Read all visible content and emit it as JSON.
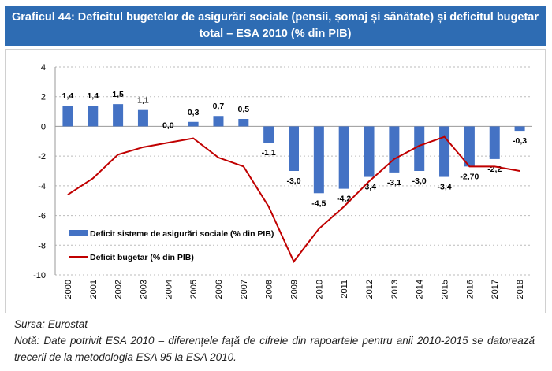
{
  "chart_data": {
    "type": "bar",
    "title": "Graficul 44: Deficitul bugetelor de asigurări sociale (pensii, șomaj și sănătate) și deficitul bugetar total – ESA 2010 (% din PIB)",
    "categories": [
      "2000",
      "2001",
      "2002",
      "2003",
      "2004",
      "2005",
      "2006",
      "2007",
      "2008",
      "2009",
      "2010",
      "2011",
      "2012",
      "2013",
      "2014",
      "2015",
      "2016",
      "2017",
      "2018"
    ],
    "series": [
      {
        "name": "Deficit sisteme de asigurări sociale (% din PIB)",
        "type": "bar",
        "color": "#4472c4",
        "values": [
          1.4,
          1.4,
          1.5,
          1.1,
          0.0,
          0.3,
          0.7,
          0.5,
          -1.1,
          -3.0,
          -4.5,
          -4.2,
          -3.4,
          -3.1,
          -3.0,
          -3.4,
          -2.7,
          -2.2,
          -0.3
        ],
        "labels": [
          "1,4",
          "1,4",
          "1,5",
          "1,1",
          "0,0",
          "0,3",
          "0,7",
          "0,5",
          "-1,1",
          "-3,0",
          "-4,5",
          "-4,2",
          "-3,4",
          "-3,1",
          "-3,0",
          "-3,4",
          "-2,70",
          "-2,2",
          "-0,3"
        ]
      },
      {
        "name": "Deficit bugetar (% din PIB)",
        "type": "line",
        "color": "#c00000",
        "values": [
          -4.6,
          -3.5,
          -1.9,
          -1.4,
          -1.1,
          -0.8,
          -2.1,
          -2.7,
          -5.4,
          -9.1,
          -6.9,
          -5.4,
          -3.7,
          -2.2,
          -1.3,
          -0.7,
          -2.7,
          -2.7,
          -3.0
        ]
      }
    ],
    "ylim": [
      -10,
      4
    ],
    "yticks": [
      "4",
      "2",
      "0",
      "-2",
      "-4",
      "-6",
      "-8",
      "-10"
    ],
    "ytick_values": [
      4,
      2,
      0,
      -2,
      -4,
      -6,
      -8,
      -10
    ],
    "grid": true,
    "legend": "bottom-left"
  },
  "notes": {
    "source": "Sursa: Eurostat",
    "note": "Notă: Date potrivit ESA 2010 – diferențele față de cifrele din rapoartele pentru anii 2010-2015 se datorează trecerii de la metodologia ESA 95 la ESA 2010."
  }
}
